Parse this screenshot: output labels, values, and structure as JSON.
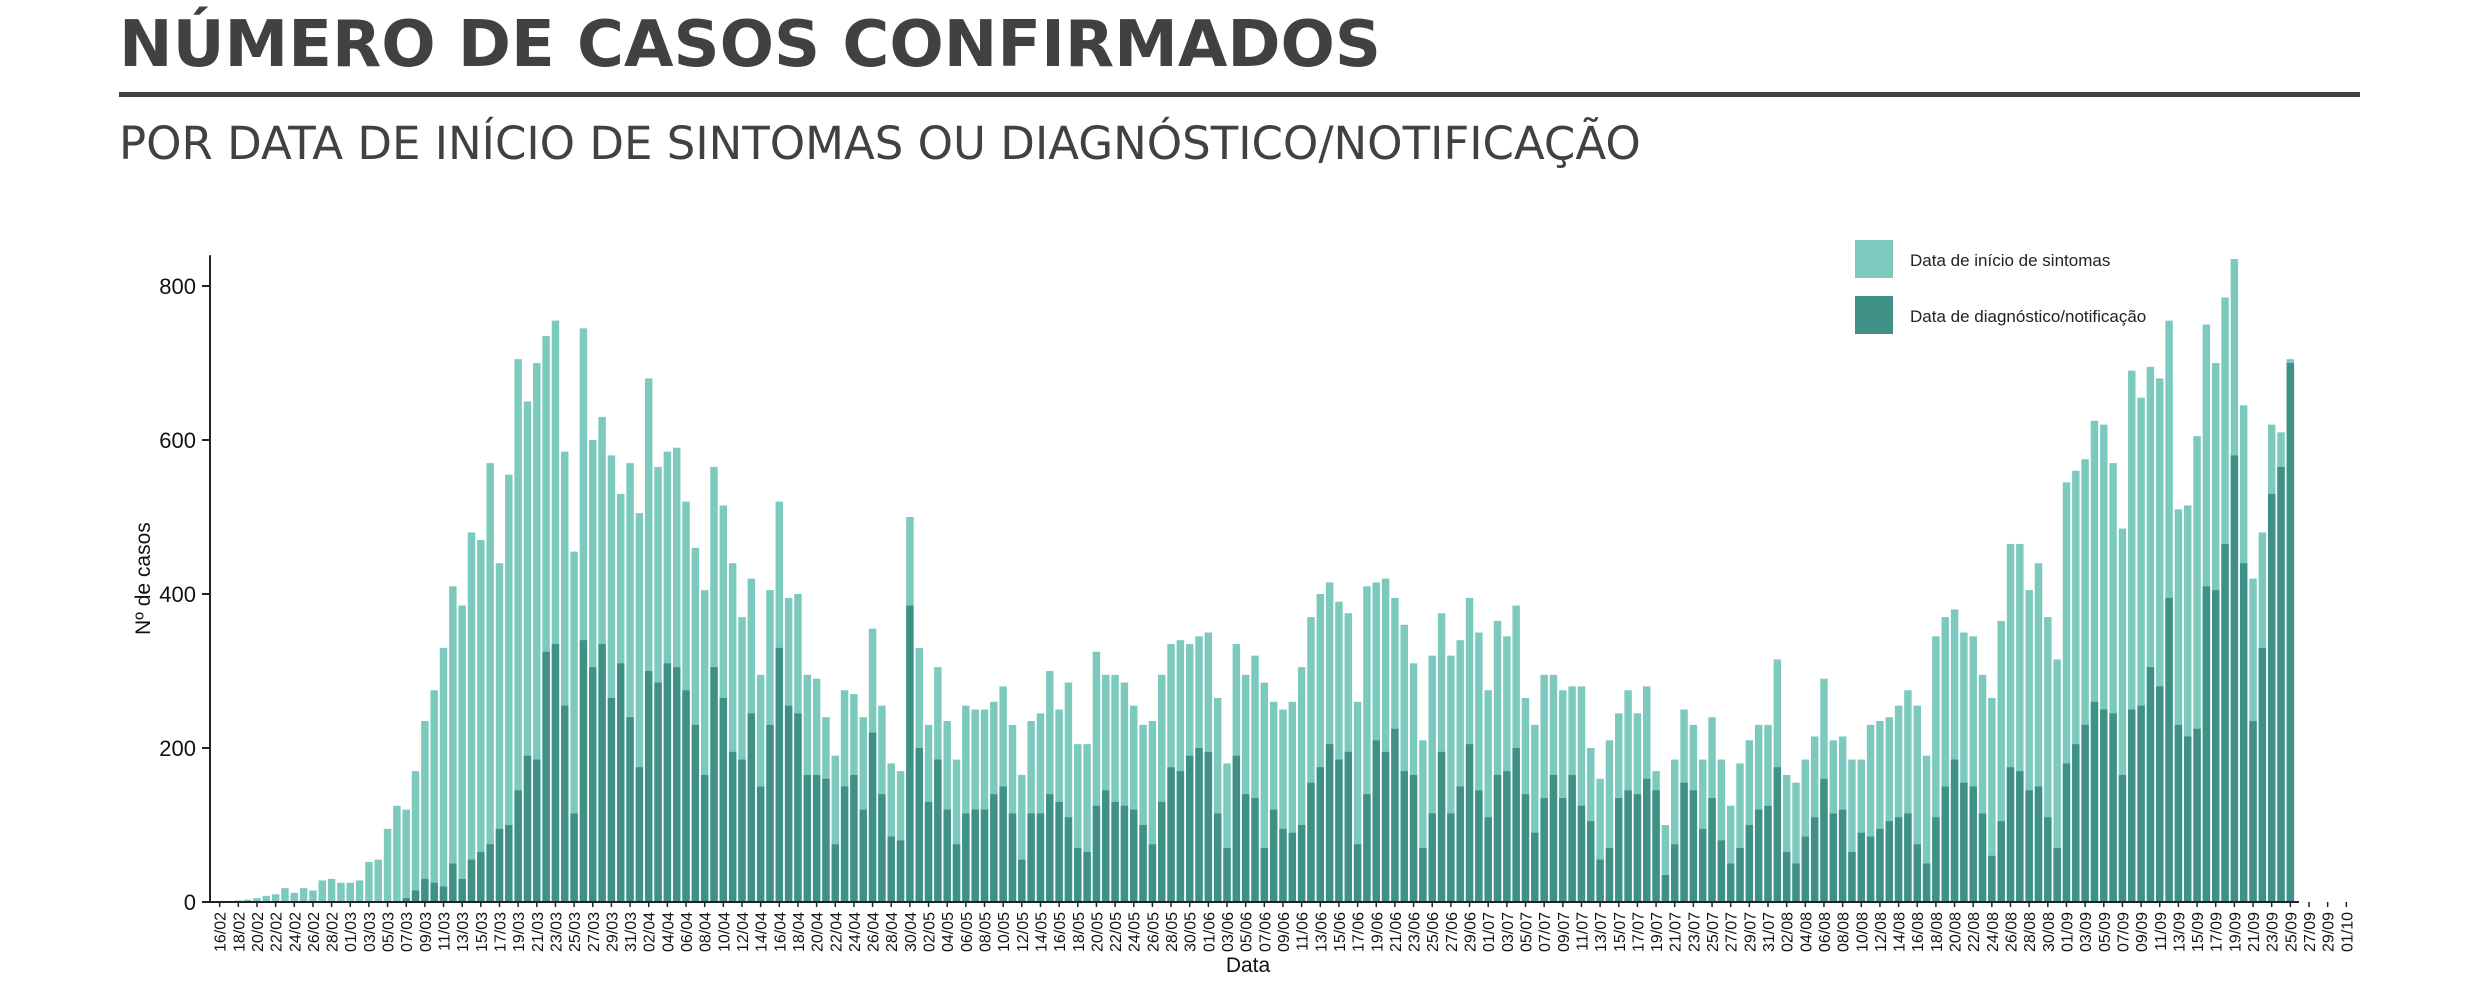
{
  "header": {
    "title": "NÚMERO DE CASOS CONFIRMADOS",
    "subtitle": "POR DATA DE INÍCIO DE SINTOMAS OU DIAGNÓSTICO/NOTIFICAÇÃO"
  },
  "colors": {
    "inicio": "#7ccabe",
    "diagnostico": "#3f9188",
    "text": "#414042"
  },
  "chart_data": {
    "type": "bar",
    "stacked": false,
    "xlabel": "Data",
    "ylabel": "Nº de casos",
    "ylim": [
      0,
      840
    ],
    "yticks": [
      0,
      200,
      400,
      600,
      800
    ],
    "grid": false,
    "legend_position": "top-right",
    "x_start": "16/02",
    "x_end": "01/10",
    "tick_every_days": 2,
    "tick_labels": [
      "16/02",
      "18/02",
      "20/02",
      "22/02",
      "24/02",
      "26/02",
      "28/02",
      "01/03",
      "03/03",
      "05/03",
      "07/03",
      "09/03",
      "11/03",
      "13/03",
      "15/03",
      "17/03",
      "19/03",
      "21/03",
      "23/03",
      "25/03",
      "27/03",
      "29/03",
      "31/03",
      "02/04",
      "04/04",
      "06/04",
      "08/04",
      "10/04",
      "12/04",
      "14/04",
      "16/04",
      "18/04",
      "20/04",
      "22/04",
      "24/04",
      "26/04",
      "28/04",
      "30/04",
      "02/05",
      "04/05",
      "06/05",
      "08/05",
      "10/05",
      "12/05",
      "14/05",
      "16/05",
      "18/05",
      "20/05",
      "22/05",
      "24/05",
      "26/05",
      "28/05",
      "30/05",
      "01/06",
      "03/06",
      "05/06",
      "07/06",
      "09/06",
      "11/06",
      "13/06",
      "15/06",
      "17/06",
      "19/06",
      "21/06",
      "23/06",
      "25/06",
      "27/06",
      "29/06",
      "01/07",
      "03/07",
      "05/07",
      "07/07",
      "09/07",
      "11/07",
      "13/07",
      "15/07",
      "17/07",
      "19/07",
      "21/07",
      "23/07",
      "25/07",
      "27/07",
      "29/07",
      "31/07",
      "02/08",
      "04/08",
      "06/08",
      "08/08",
      "10/08",
      "12/08",
      "14/08",
      "16/08",
      "18/08",
      "20/08",
      "22/08",
      "24/08",
      "26/08",
      "28/08",
      "30/08",
      "01/09",
      "03/09",
      "05/09",
      "07/09",
      "09/09",
      "11/09",
      "13/09",
      "15/09",
      "17/09",
      "19/09",
      "21/09",
      "23/09",
      "25/09",
      "27/09",
      "29/09",
      "01/10"
    ],
    "series": [
      {
        "name": "Data de início de sintomas",
        "values": [
          1,
          1,
          2,
          3,
          5,
          8,
          10,
          18,
          12,
          18,
          15,
          28,
          30,
          25,
          25,
          28,
          52,
          55,
          95,
          125,
          120,
          170,
          235,
          275,
          330,
          410,
          385,
          480,
          470,
          570,
          440,
          555,
          705,
          650,
          700,
          735,
          755,
          585,
          455,
          745,
          600,
          630,
          580,
          530,
          570,
          505,
          680,
          565,
          585,
          590,
          520,
          460,
          405,
          565,
          515,
          440,
          370,
          420,
          295,
          405,
          520,
          395,
          400,
          295,
          290,
          240,
          190,
          275,
          270,
          240,
          355,
          255,
          180,
          170,
          500,
          330,
          230,
          305,
          235,
          185,
          255,
          250,
          250,
          260,
          280,
          230,
          165,
          235,
          245,
          300,
          250,
          285,
          205,
          205,
          325,
          295,
          295,
          285,
          255,
          230,
          235,
          295,
          335,
          340,
          335,
          345,
          350,
          265,
          180,
          335,
          295,
          320,
          285,
          260,
          250,
          260,
          305,
          370,
          400,
          415,
          390,
          375,
          260,
          410,
          415,
          420,
          395,
          360,
          310,
          210,
          320,
          375,
          320,
          340,
          395,
          350,
          275,
          365,
          345,
          385,
          265,
          230,
          295,
          295,
          275,
          280,
          280,
          200,
          160,
          210,
          245,
          275,
          245,
          280,
          170,
          100,
          185,
          250,
          230,
          185,
          240,
          185,
          125,
          180,
          210,
          230,
          230,
          315,
          165,
          155,
          185,
          215,
          290,
          210,
          215,
          185,
          185,
          230,
          235,
          240,
          255,
          275,
          255,
          190,
          345,
          370,
          380,
          350,
          345,
          295,
          265,
          365,
          465,
          465,
          405,
          440,
          370,
          315,
          545,
          560,
          575,
          625,
          620,
          570,
          485,
          690,
          655,
          695,
          680,
          755,
          510,
          515,
          605,
          750,
          700,
          785,
          835,
          645,
          420,
          480,
          620,
          610,
          705
        ]
      },
      {
        "name": "Data de diagnóstico/notificação",
        "values": [
          0,
          0,
          0,
          0,
          0,
          0,
          0,
          0,
          0,
          0,
          0,
          0,
          0,
          0,
          0,
          0,
          0,
          0,
          0,
          0,
          5,
          15,
          30,
          25,
          20,
          50,
          30,
          55,
          65,
          75,
          95,
          100,
          145,
          190,
          185,
          325,
          335,
          255,
          115,
          340,
          305,
          335,
          265,
          310,
          240,
          175,
          300,
          285,
          310,
          305,
          275,
          230,
          165,
          305,
          265,
          195,
          185,
          245,
          150,
          230,
          330,
          255,
          245,
          165,
          165,
          160,
          75,
          150,
          165,
          120,
          220,
          140,
          85,
          80,
          385,
          200,
          130,
          185,
          120,
          75,
          115,
          120,
          120,
          140,
          150,
          115,
          55,
          115,
          115,
          140,
          130,
          110,
          70,
          65,
          125,
          145,
          130,
          125,
          120,
          100,
          75,
          130,
          175,
          170,
          190,
          200,
          195,
          115,
          70,
          190,
          140,
          135,
          70,
          120,
          95,
          90,
          100,
          155,
          175,
          205,
          185,
          195,
          75,
          140,
          210,
          195,
          225,
          170,
          165,
          70,
          115,
          195,
          115,
          150,
          205,
          145,
          110,
          165,
          170,
          200,
          140,
          90,
          135,
          165,
          135,
          165,
          125,
          105,
          55,
          70,
          135,
          145,
          140,
          160,
          145,
          35,
          75,
          155,
          145,
          95,
          135,
          80,
          50,
          70,
          100,
          120,
          125,
          175,
          65,
          50,
          85,
          110,
          160,
          115,
          120,
          65,
          90,
          85,
          95,
          105,
          110,
          115,
          75,
          50,
          110,
          150,
          185,
          155,
          150,
          115,
          60,
          105,
          175,
          170,
          145,
          150,
          110,
          70,
          180,
          205,
          230,
          260,
          250,
          245,
          165,
          250,
          255,
          305,
          280,
          395,
          230,
          215,
          225,
          410,
          405,
          465,
          580,
          440,
          235,
          330,
          530,
          565,
          700
        ]
      }
    ]
  }
}
